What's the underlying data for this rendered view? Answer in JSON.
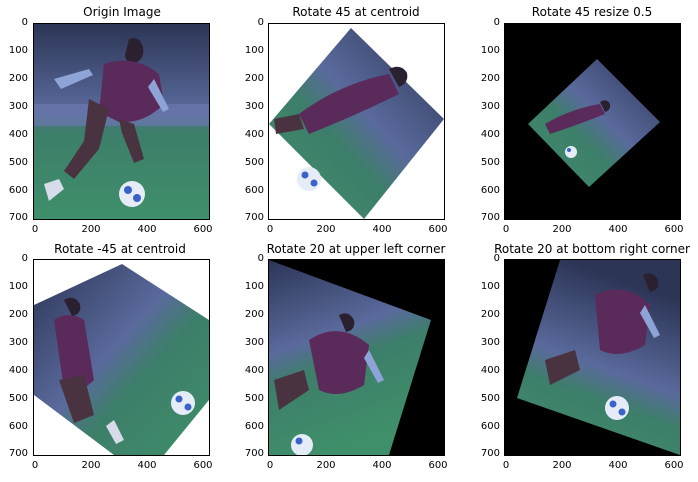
{
  "panels": [
    {
      "title": "Origin Image",
      "xticks": [
        "0",
        "200",
        "400",
        "600"
      ],
      "yticks": [
        "0",
        "100",
        "200",
        "300",
        "400",
        "500",
        "600",
        "700"
      ]
    },
    {
      "title": "Rotate 45 at centroid",
      "xticks": [
        "0",
        "200",
        "400",
        "600"
      ],
      "yticks": [
        "0",
        "100",
        "200",
        "300",
        "400",
        "500",
        "600",
        "700"
      ]
    },
    {
      "title": "Rotate 45 resize 0.5",
      "xticks": [
        "0",
        "200",
        "400",
        "600"
      ],
      "yticks": [
        "0",
        "100",
        "200",
        "300",
        "400",
        "500",
        "600",
        "700"
      ]
    },
    {
      "title": "Rotate -45 at centroid",
      "xticks": [
        "0",
        "200",
        "400",
        "600"
      ],
      "yticks": [
        "0",
        "100",
        "200",
        "300",
        "400",
        "500",
        "600",
        "700"
      ]
    },
    {
      "title": "Rotate 20 at upper left corner",
      "xticks": [
        "0",
        "200",
        "400",
        "600"
      ],
      "yticks": [
        "0",
        "100",
        "200",
        "300",
        "400",
        "500",
        "600",
        "700"
      ]
    },
    {
      "title": "Rotate 20 at bottom right corner",
      "xticks": [
        "0",
        "200",
        "400",
        "600"
      ],
      "yticks": [
        "0",
        "100",
        "200",
        "300",
        "400",
        "500",
        "600",
        "700"
      ]
    }
  ],
  "colors": {
    "background_fill": "#000000",
    "pitch_green": "#3f8f6a",
    "crowd_blue": "#3a4a78",
    "jersey_purple": "#5a2a5a",
    "skin_blue": "#8fa4d6",
    "ball_white": "#e6ecf7"
  },
  "icons": {
    "image_content": "soccer-player-dribbling-ball"
  }
}
